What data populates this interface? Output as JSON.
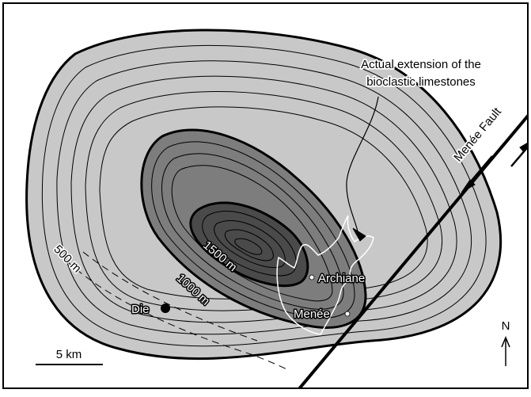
{
  "map": {
    "annotation_line1": "Actual extension of the",
    "annotation_line2": "bioclastic limestones",
    "fault_label": "Menée Fault",
    "contours": {
      "c500": "500 m",
      "c1000": "1000 m",
      "c1500": "1500 m"
    },
    "places": {
      "die": "Die",
      "archiane": "Archiane",
      "menee": "Menée"
    },
    "scale_label": "5 km",
    "north_label": "N",
    "colors": {
      "outer_zone": "#c8c8c8",
      "middle_zone": "#7d7d7d",
      "inner_zone": "#4a4a4a",
      "limestone_outline": "#ffffff"
    }
  }
}
